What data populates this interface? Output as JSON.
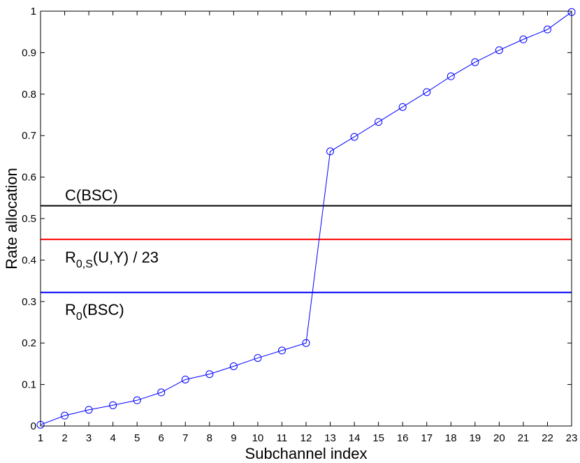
{
  "chart_data": {
    "type": "line",
    "title": "",
    "xlabel": "Subchannel index",
    "ylabel": "Rate allocation",
    "xlim": [
      1,
      23
    ],
    "ylim": [
      0,
      1
    ],
    "xticks": [
      1,
      2,
      3,
      4,
      5,
      6,
      7,
      8,
      9,
      10,
      11,
      12,
      13,
      14,
      15,
      16,
      17,
      18,
      19,
      20,
      21,
      22,
      23
    ],
    "yticks": [
      "0",
      "0.1",
      "0.2",
      "0.3",
      "0.4",
      "0.5",
      "0.6",
      "0.7",
      "0.8",
      "0.9",
      "1"
    ],
    "grid": false,
    "series": [
      {
        "color": "#0000ff",
        "marker": "circle",
        "x": [
          1,
          2,
          3,
          4,
          5,
          6,
          7,
          8,
          9,
          10,
          11,
          12,
          13,
          14,
          15,
          16,
          17,
          18,
          19,
          20,
          21,
          22,
          23
        ],
        "y": [
          0.003,
          0.025,
          0.039,
          0.05,
          0.062,
          0.081,
          0.112,
          0.125,
          0.144,
          0.164,
          0.182,
          0.2,
          0.662,
          0.697,
          0.733,
          0.769,
          0.805,
          0.843,
          0.877,
          0.906,
          0.932,
          0.956,
          0.998
        ]
      }
    ],
    "hlines": [
      {
        "y": 0.531,
        "color": "#000000",
        "label_main": "C(BSC)",
        "label_sub": "",
        "label_rest": ""
      },
      {
        "y": 0.45,
        "color": "#ff0000",
        "label_main": "R",
        "label_sub": "0,S",
        "label_rest": "(U,Y) / 23"
      },
      {
        "y": 0.322,
        "color": "#0000ff",
        "label_main": "R",
        "label_sub": "0",
        "label_rest": "(BSC)"
      }
    ]
  }
}
